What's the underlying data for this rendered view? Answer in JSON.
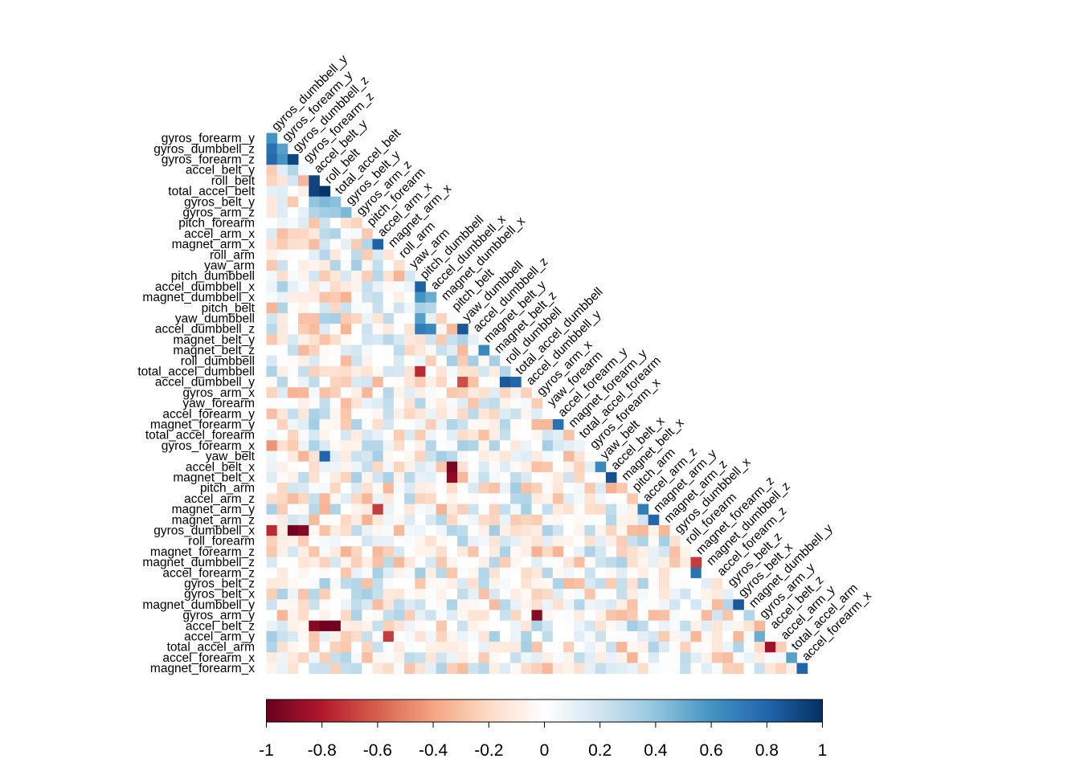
{
  "chart_data": {
    "type": "heatmap",
    "subtype": "lower-triangular correlation matrix",
    "title": "",
    "variables": [
      "gyros_dumbbell_y",
      "gyros_forearm_y",
      "gyros_dumbbell_z",
      "gyros_forearm_z",
      "accel_belt_y",
      "roll_belt",
      "total_accel_belt",
      "gyros_belt_y",
      "gyros_arm_z",
      "pitch_forearm",
      "accel_arm_x",
      "magnet_arm_x",
      "roll_arm",
      "yaw_arm",
      "pitch_dumbbell",
      "accel_dumbbell_x",
      "magnet_dumbbell_x",
      "pitch_belt",
      "yaw_dumbbell",
      "accel_dumbbell_z",
      "magnet_belt_y",
      "magnet_belt_z",
      "roll_dumbbell",
      "total_accel_dumbbell",
      "accel_dumbbell_y",
      "gyros_arm_x",
      "yaw_forearm",
      "accel_forearm_y",
      "magnet_forearm_y",
      "total_accel_forearm",
      "gyros_forearm_x",
      "yaw_belt",
      "accel_belt_x",
      "magnet_belt_x",
      "pitch_arm",
      "accel_arm_z",
      "magnet_arm_y",
      "magnet_arm_z",
      "gyros_dumbbell_x",
      "roll_forearm",
      "magnet_forearm_z",
      "magnet_dumbbell_z",
      "accel_forearm_z",
      "gyros_belt_z",
      "gyros_belt_x",
      "magnet_dumbbell_y",
      "gyros_arm_y",
      "accel_belt_z",
      "accel_arm_y",
      "total_accel_arm",
      "accel_forearm_x",
      "magnet_forearm_x"
    ],
    "colorbar": {
      "range": [
        -1,
        1
      ],
      "ticks": [
        "-1",
        "-0.8",
        "-0.6",
        "-0.4",
        "-0.2",
        "0",
        "0.2",
        "0.4",
        "0.6",
        "0.8",
        "1"
      ],
      "colors": [
        "#67001f",
        "#b2182b",
        "#d6604d",
        "#f4a582",
        "#fddbc7",
        "#ffffff",
        "#d1e5f0",
        "#92c5de",
        "#4393c3",
        "#2166ac",
        "#053061"
      ]
    },
    "highlights": [
      {
        "row": "gyros_forearm_y",
        "col": "gyros_dumbbell_y",
        "r": 0.6
      },
      {
        "row": "gyros_dumbbell_z",
        "col": "gyros_dumbbell_y",
        "r": 0.75
      },
      {
        "row": "gyros_dumbbell_z",
        "col": "gyros_forearm_y",
        "r": 0.55
      },
      {
        "row": "gyros_forearm_z",
        "col": "gyros_dumbbell_y",
        "r": 0.78
      },
      {
        "row": "gyros_forearm_z",
        "col": "gyros_forearm_y",
        "r": 0.6
      },
      {
        "row": "gyros_forearm_z",
        "col": "gyros_dumbbell_z",
        "r": 0.92
      },
      {
        "row": "roll_belt",
        "col": "accel_belt_y",
        "r": 0.92
      },
      {
        "row": "total_accel_belt",
        "col": "accel_belt_y",
        "r": 0.93
      },
      {
        "row": "total_accel_belt",
        "col": "roll_belt",
        "r": 0.98
      },
      {
        "row": "gyros_belt_y",
        "col": "accel_belt_y",
        "r": 0.4
      },
      {
        "row": "gyros_belt_y",
        "col": "roll_belt",
        "r": 0.45
      },
      {
        "row": "gyros_belt_y",
        "col": "total_accel_belt",
        "r": 0.42
      },
      {
        "row": "gyros_arm_z",
        "col": "accel_belt_y",
        "r": 0.3
      },
      {
        "row": "gyros_arm_z",
        "col": "roll_belt",
        "r": 0.35
      },
      {
        "row": "gyros_arm_z",
        "col": "total_accel_belt",
        "r": 0.36
      },
      {
        "row": "gyros_arm_z",
        "col": "gyros_belt_y",
        "r": 0.45
      },
      {
        "row": "magnet_arm_x",
        "col": "accel_arm_x",
        "r": 0.82
      },
      {
        "row": "magnet_arm_x",
        "col": "pitch_forearm",
        "r": 0.3
      },
      {
        "row": "accel_dumbbell_x",
        "col": "pitch_dumbbell",
        "r": 0.82
      },
      {
        "row": "magnet_dumbbell_x",
        "col": "pitch_dumbbell",
        "r": 0.6
      },
      {
        "row": "magnet_dumbbell_x",
        "col": "accel_dumbbell_x",
        "r": 0.5
      },
      {
        "row": "yaw_dumbbell",
        "col": "pitch_dumbbell",
        "r": 0.55
      },
      {
        "row": "accel_dumbbell_z",
        "col": "pitch_dumbbell",
        "r": 0.7
      },
      {
        "row": "accel_dumbbell_z",
        "col": "accel_dumbbell_x",
        "r": 0.65
      },
      {
        "row": "accel_dumbbell_z",
        "col": "yaw_dumbbell",
        "r": 0.85
      },
      {
        "row": "magnet_belt_z",
        "col": "magnet_belt_y",
        "r": 0.65
      },
      {
        "row": "total_accel_dumbbell",
        "col": "roll_dumbbell",
        "r": 0.3
      },
      {
        "row": "total_accel_dumbbell",
        "col": "pitch_dumbbell",
        "r": -0.75
      },
      {
        "row": "accel_dumbbell_y",
        "col": "roll_dumbbell",
        "r": 0.85
      },
      {
        "row": "accel_dumbbell_y",
        "col": "total_accel_dumbbell",
        "r": 0.8
      },
      {
        "row": "accel_dumbbell_y",
        "col": "yaw_dumbbell",
        "r": -0.65
      },
      {
        "row": "gyros_forearm_x",
        "col": "gyros_dumbbell_y",
        "r": -0.45
      },
      {
        "row": "magnet_forearm_y",
        "col": "accel_forearm_y",
        "r": 0.75
      },
      {
        "row": "yaw_belt",
        "col": "roll_belt",
        "r": 0.8
      },
      {
        "row": "accel_belt_x",
        "col": "yaw_belt",
        "r": 0.65
      },
      {
        "row": "accel_belt_x",
        "col": "pitch_belt",
        "r": -0.95
      },
      {
        "row": "magnet_belt_x",
        "col": "accel_belt_x",
        "r": 0.88
      },
      {
        "row": "magnet_belt_x",
        "col": "pitch_belt",
        "r": -0.9
      },
      {
        "row": "magnet_arm_y",
        "col": "accel_arm_z",
        "r": 0.7
      },
      {
        "row": "magnet_arm_z",
        "col": "magnet_arm_y",
        "r": 0.8
      },
      {
        "row": "magnet_arm_y",
        "col": "accel_arm_x",
        "r": -0.7
      },
      {
        "row": "gyros_dumbbell_x",
        "col": "gyros_dumbbell_y",
        "r": -0.75
      },
      {
        "row": "gyros_dumbbell_x",
        "col": "gyros_dumbbell_z",
        "r": -0.97
      },
      {
        "row": "gyros_dumbbell_x",
        "col": "gyros_forearm_z",
        "r": -0.92
      },
      {
        "row": "magnet_dumbbell_z",
        "col": "magnet_forearm_z",
        "r": -0.7
      },
      {
        "row": "accel_forearm_z",
        "col": "magnet_forearm_z",
        "r": 0.75
      },
      {
        "row": "magnet_dumbbell_y",
        "col": "gyros_belt_x",
        "r": 0.85
      },
      {
        "row": "gyros_arm_y",
        "col": "gyros_arm_x",
        "r": -0.92
      },
      {
        "row": "accel_belt_z",
        "col": "roll_belt",
        "r": -0.98
      },
      {
        "row": "accel_belt_z",
        "col": "total_accel_belt",
        "r": -0.97
      },
      {
        "row": "accel_belt_z",
        "col": "accel_belt_y",
        "r": -0.92
      },
      {
        "row": "accel_belt_z",
        "col": "pitch_belt",
        "r": 0.0
      },
      {
        "row": "accel_arm_y",
        "col": "magnet_arm_x",
        "r": -0.7
      },
      {
        "row": "total_accel_arm",
        "col": "accel_belt_z",
        "r": -0.85
      },
      {
        "row": "accel_arm_y",
        "col": "gyros_arm_y",
        "r": 0.5
      },
      {
        "row": "accel_forearm_x",
        "col": "total_accel_arm",
        "r": 0.55
      },
      {
        "row": "magnet_forearm_x",
        "col": "accel_forearm_x",
        "r": 0.8
      }
    ]
  }
}
